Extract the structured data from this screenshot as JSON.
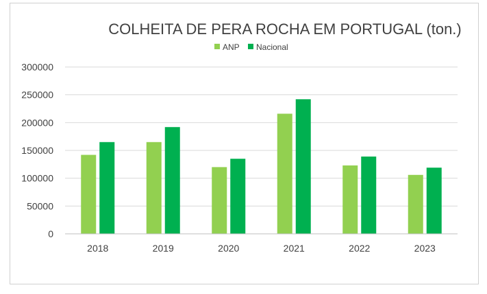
{
  "chart_data": {
    "type": "bar",
    "title": "COLHEITA DE PERA ROCHA EM PORTUGAL (ton.)",
    "categories": [
      "2018",
      "2019",
      "2020",
      "2021",
      "2022",
      "2023"
    ],
    "series": [
      {
        "name": "ANP",
        "color": "#92d050",
        "values": [
          142000,
          165000,
          120000,
          216000,
          123000,
          106000
        ]
      },
      {
        "name": "Nacional",
        "color": "#00b050",
        "values": [
          165000,
          192000,
          135000,
          242000,
          139000,
          119000
        ]
      }
    ],
    "yticks": [
      "0",
      "50000",
      "100000",
      "150000",
      "200000",
      "250000",
      "300000"
    ],
    "ylim": [
      0,
      300000
    ],
    "grid": true,
    "legend_position": "top-center"
  }
}
